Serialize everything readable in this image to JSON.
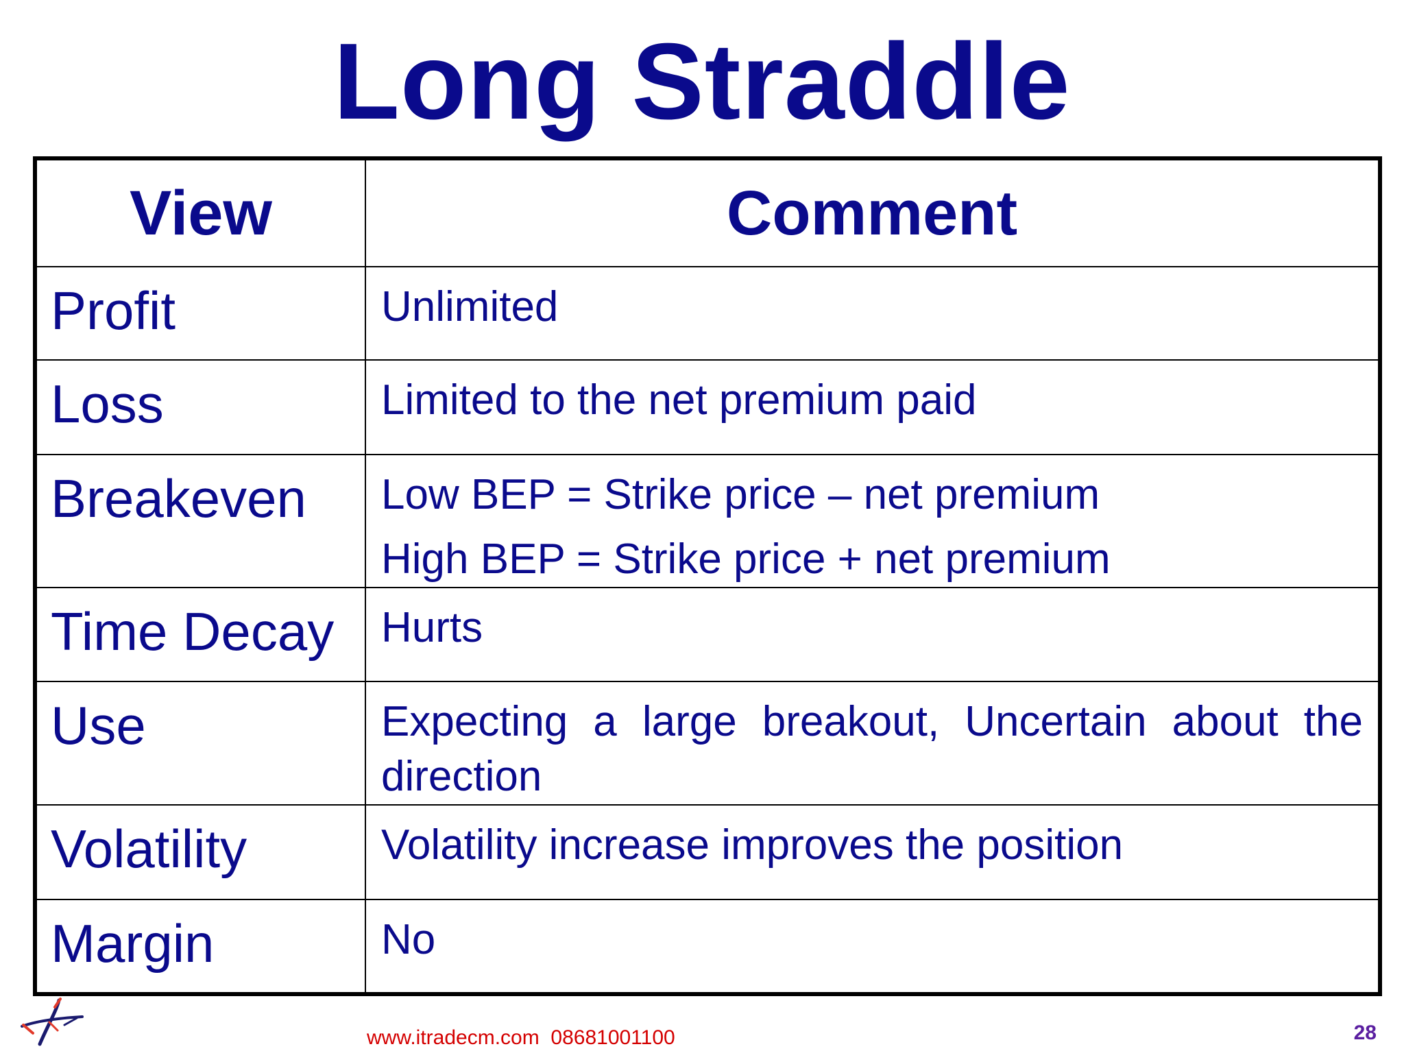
{
  "title": "Long Straddle",
  "table": {
    "headers": [
      "View",
      "Comment"
    ],
    "rows": [
      {
        "view": "Profit",
        "comment": [
          "Unlimited"
        ]
      },
      {
        "view": "Loss",
        "comment": [
          "Limited to the net premium paid"
        ]
      },
      {
        "view": "Breakeven",
        "comment": [
          "Low BEP = Strike price – net premium",
          "High BEP = Strike price + net premium"
        ]
      },
      {
        "view": "Time Decay",
        "comment": [
          "Hurts"
        ]
      },
      {
        "view": "Use",
        "comment": [
          "Expecting a large breakout, Uncertain about the direction"
        ]
      },
      {
        "view": "Volatility",
        "comment": [
          "Volatility increase improves the position"
        ]
      },
      {
        "view": "Margin",
        "comment": [
          "No"
        ]
      }
    ]
  },
  "footer": {
    "website": "www.itradecm.com",
    "phone": "08681001100",
    "page_number": "28"
  },
  "colors": {
    "text_blue": "#0a0a8c",
    "footer_red": "#d40000",
    "page_number_purple": "#5a1ea0"
  },
  "icons": {
    "logo": "arrow-compass-logo"
  }
}
